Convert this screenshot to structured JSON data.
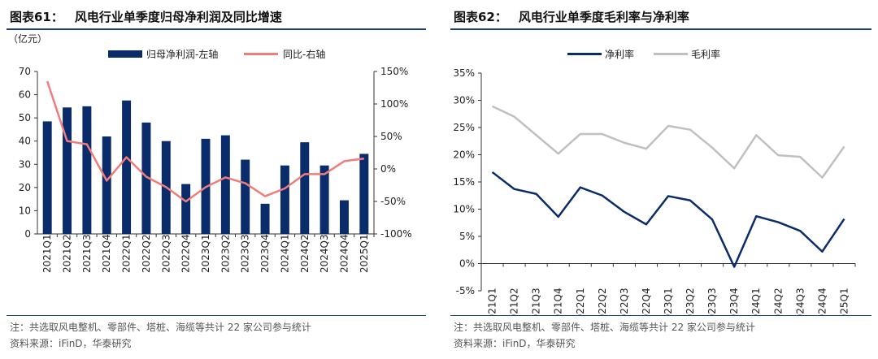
{
  "left": {
    "figure_number": "图表61：",
    "figure_title": "风电行业单季度归母净利润及同比增速",
    "note": "注：共选取风电整机、零部件、塔桩、海缆等共计 22 家公司参与统计",
    "source": "资料来源：iFinD，华泰研究"
  },
  "right": {
    "figure_number": "图表62：",
    "figure_title": "风电行业单季度毛利率与净利率",
    "note": "注：共选取风电整机、零部件、塔桩、海缆等共计 22 家公司参与统计",
    "source": "资料来源：iFinD，华泰研究"
  },
  "chart_data": [
    {
      "type": "bar",
      "unit_label": "（亿元）",
      "categories": [
        "2021Q1",
        "2021Q2",
        "2021Q3",
        "2021Q4",
        "2022Q1",
        "2022Q2",
        "2022Q3",
        "2022Q4",
        "2023Q1",
        "2023Q2",
        "2023Q3",
        "2023Q4",
        "2024Q1",
        "2024Q2",
        "2024Q3",
        "2024Q4",
        "2025Q1"
      ],
      "series": [
        {
          "name": "归母净利润-左轴",
          "type": "bar",
          "axis": "left",
          "color": "#0b2c6b",
          "values": [
            48.5,
            54.5,
            55,
            42,
            57.5,
            48,
            40,
            21.5,
            41,
            42.5,
            32,
            13,
            29.5,
            39.5,
            29.5,
            14.5,
            34.5
          ]
        },
        {
          "name": "同比-右轴",
          "type": "line",
          "axis": "right",
          "color": "#f07c7c",
          "values": [
            135,
            43,
            38,
            -18,
            18,
            -12,
            -28,
            -50,
            -28,
            -13,
            -22,
            -42,
            -30,
            -8,
            -8,
            12,
            16
          ]
        }
      ],
      "left_axis": {
        "min": 0,
        "max": 70,
        "ticks": [
          0,
          10,
          20,
          30,
          40,
          50,
          60,
          70
        ],
        "labels": [
          "0",
          "10",
          "20",
          "30",
          "40",
          "50",
          "60",
          "70"
        ]
      },
      "right_axis": {
        "min": -100,
        "max": 150,
        "ticks": [
          -100,
          -50,
          0,
          50,
          100,
          150
        ],
        "labels": [
          "-100%",
          "-50%",
          "0%",
          "50%",
          "100%",
          "150%"
        ]
      },
      "legend_position": "top"
    },
    {
      "type": "line",
      "categories": [
        "2021Q1",
        "2021Q2",
        "2021Q3",
        "2021Q4",
        "2022Q1",
        "2022Q2",
        "2022Q3",
        "2022Q4",
        "2023Q1",
        "2023Q2",
        "2023Q3",
        "2023Q4",
        "2024Q1",
        "2024Q2",
        "2024Q3",
        "2024Q4",
        "2025Q1"
      ],
      "series": [
        {
          "name": "净利率",
          "color": "#0b2c6b",
          "values": [
            16.8,
            13.7,
            12.8,
            8.6,
            14,
            12.5,
            9.5,
            7.2,
            12.4,
            11.6,
            8.1,
            -0.6,
            8.7,
            7.6,
            6,
            2.2,
            8.2
          ]
        },
        {
          "name": "毛利率",
          "color": "#c0c0c0",
          "values": [
            28.9,
            27,
            23.6,
            20.2,
            23.8,
            23.8,
            22.2,
            21.1,
            25.3,
            24.6,
            21.3,
            17.5,
            23.6,
            19.9,
            19.6,
            15.8,
            21.5
          ]
        }
      ],
      "y_axis": {
        "min": -5,
        "max": 35,
        "ticks": [
          -5,
          0,
          5,
          10,
          15,
          20,
          25,
          30,
          35
        ],
        "labels": [
          "-5%",
          "0%",
          "5%",
          "10%",
          "15%",
          "20%",
          "25%",
          "30%",
          "35%"
        ]
      },
      "legend_position": "top"
    }
  ]
}
